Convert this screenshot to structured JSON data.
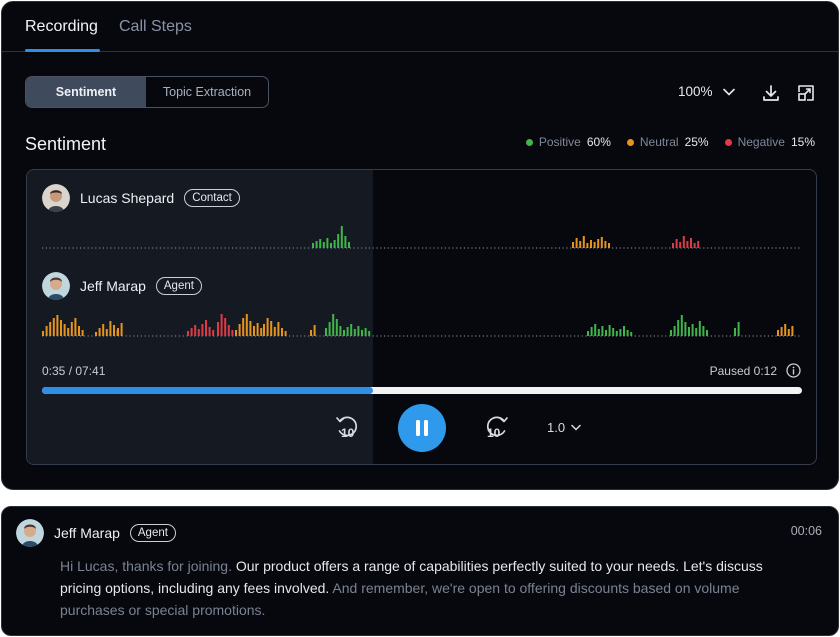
{
  "tabs": [
    {
      "label": "Recording",
      "active": true
    },
    {
      "label": "Call Steps",
      "active": false
    }
  ],
  "segment": {
    "active": "Sentiment",
    "inactive": "Topic Extraction"
  },
  "toolbar": {
    "zoom": "100%"
  },
  "sentiment": {
    "title": "Sentiment",
    "legend": [
      {
        "label": "Positive",
        "value": "60%",
        "color": "#3fb54a"
      },
      {
        "label": "Neutral",
        "value": "25%",
        "color": "#e6941c"
      },
      {
        "label": "Negative",
        "value": "15%",
        "color": "#dd3b46"
      }
    ]
  },
  "speakers": [
    {
      "name": "Lucas Shepard",
      "role": "Contact"
    },
    {
      "name": "Jeff Marap",
      "role": "Agent"
    }
  ],
  "player": {
    "elapsed": "0:35 / 07:41",
    "status": "Paused 0:12",
    "progress": 0.435,
    "rewind_label": "10",
    "forward_label": "10",
    "speed": "1.0"
  },
  "transcript": {
    "speaker": "Jeff Marap",
    "role": "Agent",
    "time": "00:06",
    "segments": [
      {
        "text": "Hi Lucas, thanks for joining. ",
        "style": "dim"
      },
      {
        "text": "Our product offers a range of capabilities perfectly suited to your needs. Let's discuss pricing options, including any fees involved. ",
        "style": "bright"
      },
      {
        "text": "And remember, we're open to offering discounts based on volume purchases or special promotions.",
        "style": "dim"
      }
    ]
  }
}
